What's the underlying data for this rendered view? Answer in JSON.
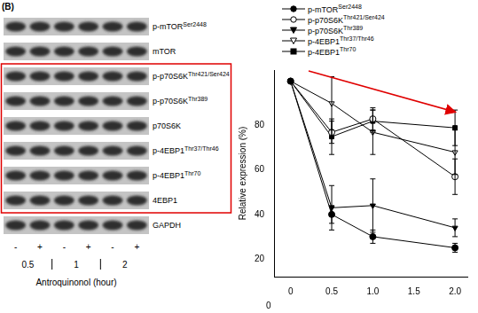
{
  "panel_label": "(B)",
  "blot": {
    "rows": [
      {
        "label": "p-mTOR Ser2448",
        "boxed": false
      },
      {
        "label": "mTOR",
        "boxed": false
      },
      {
        "label": "p-p70S6K Thr421/Ser424",
        "boxed": true
      },
      {
        "label": "p-p70S6K Thr389",
        "boxed": true
      },
      {
        "label": "p70S6K",
        "boxed": true
      },
      {
        "label": "p-4EBP1 Thr37/Thr46",
        "boxed": true
      },
      {
        "label": "p-4EBP1 Thr70",
        "boxed": true
      },
      {
        "label": "4EBP1",
        "boxed": true
      },
      {
        "label": "GAPDH",
        "boxed": false
      }
    ],
    "treatment": [
      "-",
      "+",
      "-",
      "+",
      "-",
      "+"
    ],
    "times": [
      0.5,
      1,
      2
    ],
    "xlabel": "Antroquinonol (hour)"
  },
  "chart_data": {
    "type": "line",
    "ylabel": "Relative expression (%)",
    "x": [
      0,
      0.5,
      1,
      2
    ],
    "xlim": [
      -0.2,
      2.15
    ],
    "xticks": [
      0,
      0.5,
      {
        "value": 1,
        "label": "1.0"
      },
      {
        "value": 1.5,
        "label": "1.5"
      },
      {
        "value": 2,
        "label": "2.0"
      }
    ],
    "ylim": [
      12,
      105
    ],
    "yticks": [
      20,
      40,
      60,
      80
    ],
    "grid": false,
    "legend": "top-right",
    "annotations": [
      "0"
    ],
    "series": [
      {
        "name": "p-mTOR Ser2448",
        "color": "#000000",
        "marker": "circle",
        "line_style": "solid",
        "values": [
          100,
          40,
          30,
          25
        ],
        "errors": [
          0,
          4,
          3,
          2
        ]
      },
      {
        "name": "p-p70S6K Thr421/Ser424",
        "color": "#000000",
        "marker": "circle-open",
        "line_style": "solid",
        "values": [
          100,
          77,
          83,
          57
        ],
        "errors": [
          0,
          5,
          5,
          8
        ]
      },
      {
        "name": "p-p70S6K Thr389",
        "color": "#000000",
        "marker": "triangle-down",
        "line_style": "solid",
        "values": [
          100,
          43,
          44,
          34
        ],
        "errors": [
          0,
          10,
          12,
          4
        ]
      },
      {
        "name": "p-4EBP1 Thr37/Thr46",
        "color": "#000000",
        "marker": "triangle-down-open",
        "line_style": "solid",
        "values": [
          100,
          90,
          77,
          68
        ],
        "errors": [
          0,
          12,
          10,
          10
        ]
      },
      {
        "name": "p-4EBP1 Thr70",
        "color": "#000000",
        "marker": "square",
        "line_style": "solid",
        "values": [
          100,
          75,
          82,
          79
        ],
        "errors": [
          0,
          8,
          5,
          8
        ]
      }
    ]
  }
}
